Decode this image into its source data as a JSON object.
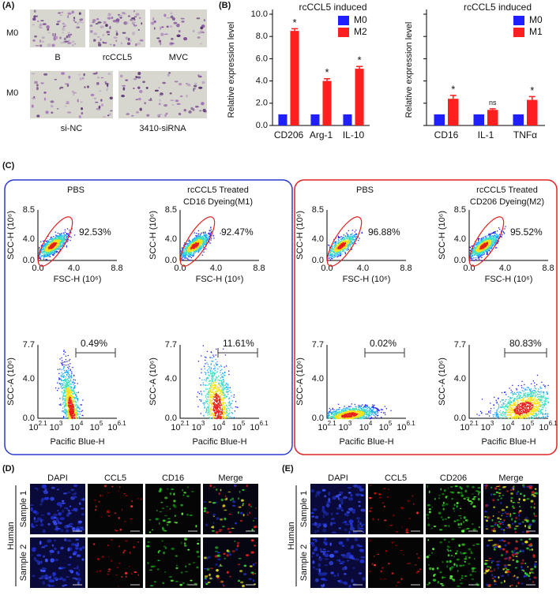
{
  "panel_labels": [
    "(A)",
    "(B)",
    "(C)",
    "(D)",
    "(E)"
  ],
  "panel_a": {
    "row_labels": [
      "M0",
      "M0"
    ],
    "images": [
      "B",
      "rcCCL5",
      "MVC",
      "si-NC",
      "3410-siRNA"
    ]
  },
  "chart_data": [
    {
      "type": "bar",
      "title": "rcCCL5 induced",
      "y_label": "Relative expression level",
      "categories": [
        "CD206",
        "Arg-1",
        "IL-10"
      ],
      "series": [
        {
          "name": "M0",
          "color": "#1f1fff",
          "values": [
            1,
            1,
            1
          ]
        },
        {
          "name": "M2",
          "color": "#ff1f1f",
          "values": [
            8.5,
            4.0,
            5.1
          ],
          "errors": [
            0.2,
            0.2,
            0.2
          ]
        }
      ],
      "annotations": [
        "*",
        "*",
        "*"
      ],
      "ylim": [
        0,
        10
      ],
      "yticks": [
        {
          "value": 0,
          "label": "0.0"
        },
        {
          "value": 2,
          "label": "2.0"
        },
        {
          "value": 4,
          "label": "4.0"
        },
        {
          "value": 6,
          "label": "6.0"
        },
        {
          "value": 8,
          "label": "8.0"
        },
        {
          "value": 10,
          "label": "10.0"
        }
      ],
      "legend": "upper right"
    },
    {
      "type": "bar",
      "title": "rcCCL5 induced",
      "y_label": "Relative expression level",
      "categories": [
        "CD16",
        "IL-1",
        "TNFα"
      ],
      "series": [
        {
          "name": "M0",
          "color": "#1f1fff",
          "values": [
            1,
            1,
            1
          ]
        },
        {
          "name": "M1",
          "color": "#ff1f1f",
          "values": [
            2.4,
            1.4,
            2.3
          ],
          "errors": [
            0.3,
            0.1,
            0.3
          ]
        }
      ],
      "annotations": [
        "*",
        "ns",
        "*"
      ],
      "ylim": [
        0,
        10
      ],
      "yticks": [
        0,
        2,
        4,
        6,
        8,
        10
      ],
      "legend": "upper right"
    }
  ],
  "panel_c": {
    "groups": [
      {
        "title": [
          "PBS"
        ],
        "gate_top": "92.53%",
        "gate_bottom": "0.49%"
      },
      {
        "title": [
          "rcCCL5 Treated",
          "CD16 Dyeing(M1)"
        ],
        "gate_top": "92.47%",
        "gate_bottom": "11.61%"
      },
      {
        "title": [
          "PBS"
        ],
        "gate_top": "96.88%",
        "gate_bottom": "0.02%"
      },
      {
        "title": [
          "rcCCL5 Treated",
          "CD206 Dyeing(M2)"
        ],
        "gate_top": "95.52%",
        "gate_bottom": "80.83%"
      }
    ],
    "top_plot": {
      "y_label": "SCC-H (10⁶)",
      "x_label": "FSC-H (10⁶)",
      "y_ticks": [
        "0.0",
        "4.0",
        "8.5"
      ],
      "x_ticks": [
        "0.0",
        "4.0",
        "8.8"
      ]
    },
    "bottom_plot": {
      "y_label": "SCC-A (10⁶)",
      "x_label": "Pacific Blue-H",
      "y_ticks": [
        "0.0",
        "4.0",
        "7.7"
      ],
      "x_ticks": [
        {
          "base": "10",
          "exp": "2.1"
        },
        {
          "base": "10",
          "exp": "3"
        },
        {
          "base": "10",
          "exp": "4"
        },
        {
          "base": "10",
          "exp": "5"
        },
        {
          "base": "10",
          "exp": "6.1"
        }
      ]
    }
  },
  "panel_d": {
    "columns": [
      "DAPI",
      "CCL5",
      "CD16",
      "Merge"
    ],
    "rows": [
      "Sample 1",
      "Sample 2"
    ],
    "group": "Human"
  },
  "panel_e": {
    "columns": [
      "DAPI",
      "CCL5",
      "CD206",
      "Merge"
    ],
    "rows": [
      "Sample 1",
      "Sample 2"
    ],
    "group": "Human"
  }
}
